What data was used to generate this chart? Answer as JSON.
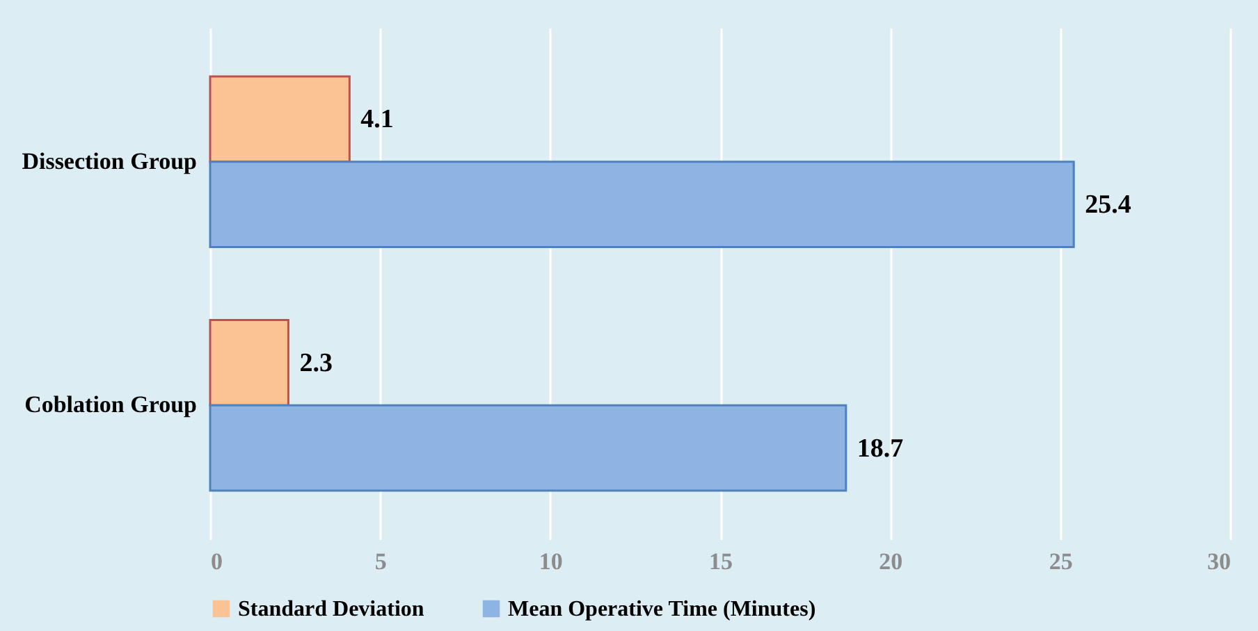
{
  "chart_data": {
    "type": "bar",
    "orientation": "horizontal",
    "categories": [
      "Dissection Group",
      "Coblation Group"
    ],
    "series": [
      {
        "name": "Standard Deviation",
        "color": "#fbc394",
        "values": [
          4.1,
          2.3
        ]
      },
      {
        "name": "Mean Operative Time (Minutes)",
        "color": "#8eb4e3",
        "values": [
          25.4,
          18.7
        ]
      }
    ],
    "xlim": [
      0,
      30
    ],
    "xticks": [
      0,
      5,
      10,
      15,
      20,
      25,
      30
    ],
    "grid": "x",
    "legend": "bottom",
    "data_labels": true
  }
}
